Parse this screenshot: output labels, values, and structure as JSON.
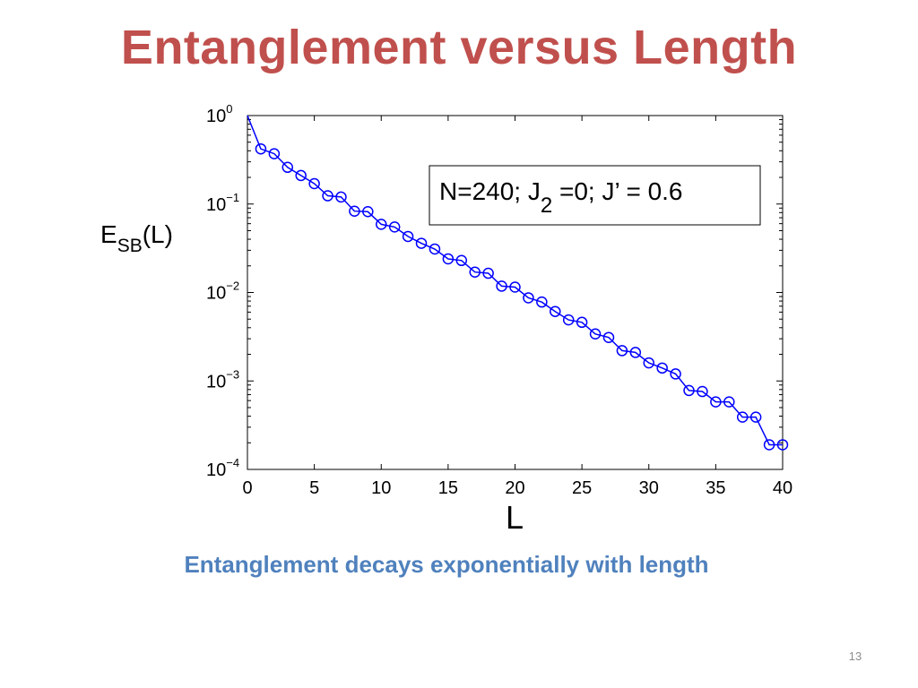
{
  "slide": {
    "title": "Entanglement versus Length",
    "caption": "Entanglement decays exponentially with length",
    "page_number": "13"
  },
  "colors": {
    "title": "#c0504d",
    "caption": "#4f81bd",
    "series": "#0000ff"
  },
  "chart_data": {
    "type": "line",
    "y_scale": "log",
    "xlabel": "L",
    "ylabel_main": "E",
    "ylabel_sub": "SB",
    "ylabel_tail": "(L)",
    "xlim": [
      0,
      40
    ],
    "ylim": [
      0.0001,
      1
    ],
    "xticks": [
      0,
      5,
      10,
      15,
      20,
      25,
      30,
      35,
      40
    ],
    "yticks": [
      {
        "base": "10",
        "exp": "0",
        "value": 1
      },
      {
        "base": "10",
        "exp": "−1",
        "value": 0.1
      },
      {
        "base": "10",
        "exp": "−2",
        "value": 0.01
      },
      {
        "base": "10",
        "exp": "−3",
        "value": 0.001
      },
      {
        "base": "10",
        "exp": "−4",
        "value": 0.0001
      }
    ],
    "grid": false,
    "annotation": {
      "prefix": "N=240; J",
      "sub": "2",
      "suffix": " =0; J’ = 0.6"
    },
    "series": [
      {
        "marker": "circle",
        "x": [
          0,
          1,
          2,
          3,
          4,
          5,
          6,
          7,
          8,
          9,
          10,
          11,
          12,
          13,
          14,
          15,
          16,
          17,
          18,
          19,
          20,
          21,
          22,
          23,
          24,
          25,
          26,
          27,
          28,
          29,
          30,
          31,
          32,
          33,
          34,
          35,
          36,
          37,
          38,
          39,
          40
        ],
        "y": [
          1.0,
          0.42,
          0.37,
          0.26,
          0.21,
          0.17,
          0.124,
          0.12,
          0.083,
          0.082,
          0.059,
          0.055,
          0.043,
          0.036,
          0.031,
          0.024,
          0.023,
          0.017,
          0.0165,
          0.0118,
          0.0115,
          0.0087,
          0.0078,
          0.0061,
          0.0049,
          0.0046,
          0.0034,
          0.0031,
          0.0022,
          0.0021,
          0.0016,
          0.0014,
          0.0012,
          0.00078,
          0.00076,
          0.00058,
          0.00058,
          0.00039,
          0.00039,
          0.00019,
          0.00019
        ]
      }
    ]
  }
}
